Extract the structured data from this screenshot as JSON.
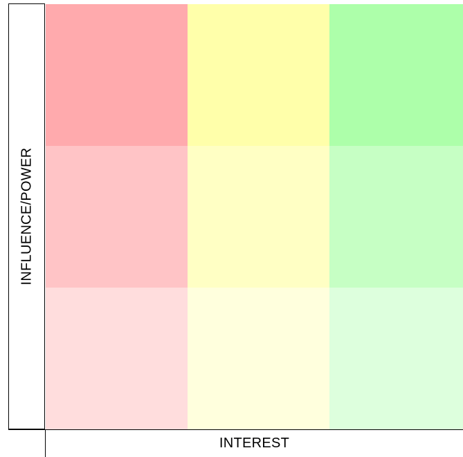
{
  "axes": {
    "y_label": "INFLUENCE/POWER",
    "x_label": "INTEREST"
  },
  "colors": {
    "row1": [
      "#ffaaad",
      "#ffffaa",
      "#adffaa"
    ],
    "row2": [
      "#ffc4c6",
      "#ffffc4",
      "#c6ffc4"
    ],
    "row3": [
      "#ffdddd",
      "#ffffdd",
      "#ddffdd"
    ],
    "line": "#000000"
  }
}
